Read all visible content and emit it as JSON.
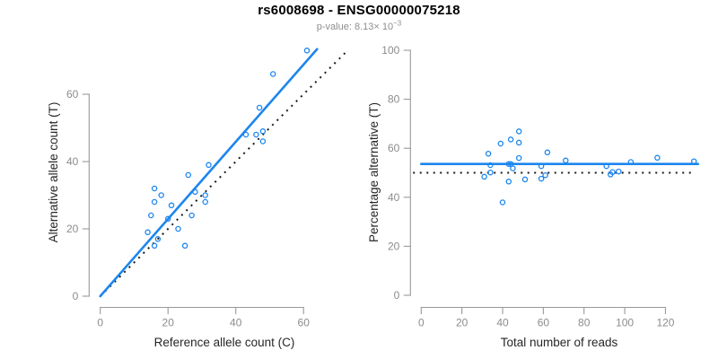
{
  "header": {
    "title": "rs6008698 - ENSG00000075218",
    "pvalue_label": "p-value: ",
    "pvalue_mantissa": "8.13",
    "pvalue_times": "×",
    "pvalue_base": "10",
    "pvalue_exponent": "−3"
  },
  "colors": {
    "accent_blue": "#1C86EE",
    "reference_black": "#1a1a1a",
    "axis_gray": "#999999",
    "tick_label_gray": "#8c8c8c",
    "axis_title_color": "#262626",
    "subtitle_gray": "#8e8e8e",
    "background": "#ffffff"
  },
  "chart_data": [
    {
      "id": "allele-counts",
      "type": "scatter",
      "title": "",
      "xlabel": "Reference allele count (C)",
      "ylabel": "Alternative allele count (T)",
      "xlim": [
        0,
        73.5
      ],
      "ylim": [
        0,
        73.5
      ],
      "xticks": [
        0,
        20,
        40,
        60
      ],
      "yticks": [
        0,
        20,
        40,
        60
      ],
      "grid": false,
      "legend": "none",
      "points": [
        [
          61,
          73
        ],
        [
          51,
          66
        ],
        [
          47,
          56
        ],
        [
          43,
          48
        ],
        [
          46,
          48
        ],
        [
          48,
          49
        ],
        [
          48,
          46
        ],
        [
          32,
          39
        ],
        [
          26,
          36
        ],
        [
          16,
          32
        ],
        [
          18,
          30
        ],
        [
          16,
          28
        ],
        [
          28,
          31
        ],
        [
          31,
          30
        ],
        [
          31,
          28
        ],
        [
          21,
          27
        ],
        [
          15,
          24
        ],
        [
          20,
          23
        ],
        [
          27,
          24
        ],
        [
          14,
          19
        ],
        [
          23,
          20
        ],
        [
          17,
          17
        ],
        [
          16,
          15
        ],
        [
          25,
          15
        ]
      ],
      "fit_line": {
        "style": "solid",
        "x1": 0,
        "y1": 0,
        "x2": 64,
        "y2": 73.4
      },
      "reference_line": {
        "style": "dotted",
        "x1": 0,
        "y1": 0,
        "x2": 73,
        "y2": 73
      }
    },
    {
      "id": "percentage-vs-reads",
      "type": "scatter",
      "title": "",
      "xlabel": "Total number of reads",
      "ylabel": "Percentage alternative (T)",
      "xlim": [
        0,
        136
      ],
      "ylim": [
        0,
        100
      ],
      "xticks": [
        0,
        20,
        40,
        60,
        80,
        100,
        120
      ],
      "yticks": [
        0,
        20,
        40,
        60,
        80,
        100
      ],
      "grid": false,
      "legend": "none",
      "points": [
        [
          33,
          57.8
        ],
        [
          34,
          53.1
        ],
        [
          34,
          50.1
        ],
        [
          31,
          48.4
        ],
        [
          39,
          61.9
        ],
        [
          44,
          63.6
        ],
        [
          48,
          66.9
        ],
        [
          48,
          62.3
        ],
        [
          48,
          56.0
        ],
        [
          43,
          53.6
        ],
        [
          44,
          53.6
        ],
        [
          45,
          51.8
        ],
        [
          43,
          46.4
        ],
        [
          40,
          37.9
        ],
        [
          51,
          47.3
        ],
        [
          59,
          52.7
        ],
        [
          59,
          47.6
        ],
        [
          61,
          49.0
        ],
        [
          62,
          58.3
        ],
        [
          71,
          55.0
        ],
        [
          91,
          52.7
        ],
        [
          93,
          49.3
        ],
        [
          94,
          50.3
        ],
        [
          97,
          50.5
        ],
        [
          103,
          54.4
        ],
        [
          116,
          56.1
        ],
        [
          134,
          54.7
        ]
      ],
      "fit_line": {
        "style": "solid",
        "y": 53.6,
        "x1": 0,
        "x2": 136
      },
      "reference_line": {
        "style": "dotted",
        "y": 50,
        "x1": -4,
        "x2": 132.5
      }
    }
  ]
}
